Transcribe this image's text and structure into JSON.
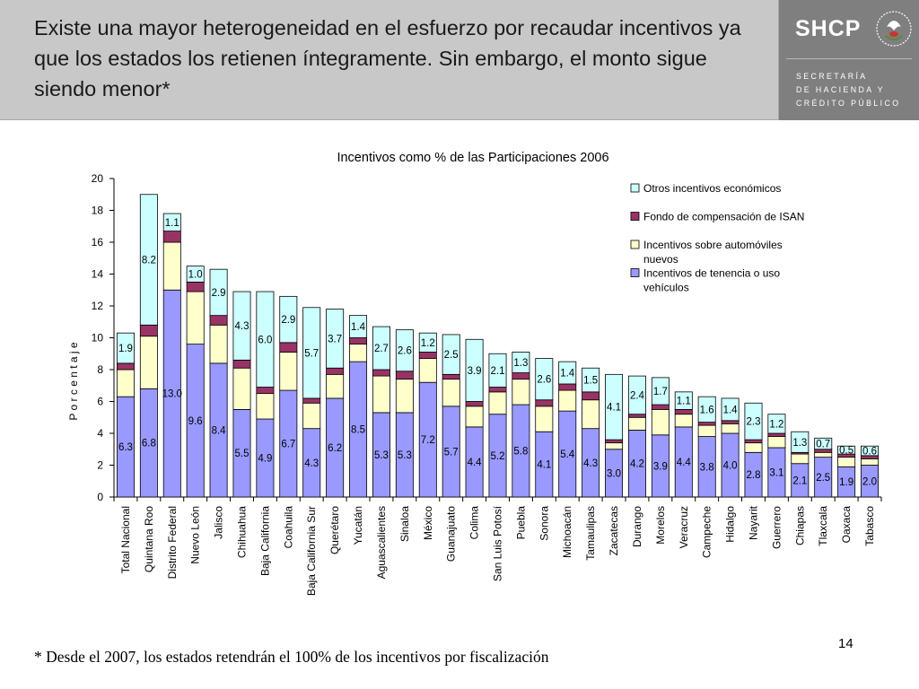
{
  "header": {
    "title": "Existe una mayor heterogeneidad en el esfuerzo por recaudar incentivos ya que los estados los retienen íntegramente.  Sin embargo, el monto sigue siendo menor*",
    "logo_text": "SHCP",
    "agency_lines": [
      "SECRETARÍA",
      "DE HACIENDA Y",
      "CRÉDITO PÚBLICO"
    ]
  },
  "footnote": "* Desde el 2007, los estados retendrán el 100% de los incentivos por fiscalización",
  "page_number": "14",
  "chart_data": {
    "type": "bar",
    "stacked": true,
    "title": "Incentivos como % de las Participaciones 2006",
    "ylabel": "P o r c e n t a j e",
    "xlabel": "",
    "ylim": [
      0,
      20
    ],
    "yticks": [
      0,
      2,
      4,
      6,
      8,
      10,
      12,
      14,
      16,
      18,
      20
    ],
    "legend_position": "top-right",
    "categories": [
      "Total Nacional",
      "Quintana Roo",
      "Distrito Federal",
      "Nuevo León",
      "Jalisco",
      "Chihuahua",
      "Baja California",
      "Coahuila",
      "Baja California Sur",
      "Querétaro",
      "Yucatán",
      "Aguascalientes",
      "Sinaloa",
      "México",
      "Guanajuato",
      "Colima",
      "San Luis Potosí",
      "Puebla",
      "Sonora",
      "Michoacán",
      "Tamaulipas",
      "Zacatecas",
      "Durango",
      "Morelos",
      "Veracruz",
      "Campeche",
      "Hidalgo",
      "Nayarit",
      "Guerrero",
      "Chiapas",
      "Tlaxcala",
      "Oaxaca",
      "Tabasco"
    ],
    "series": [
      {
        "name": "Incentivos de tenencia o uso vehículos",
        "color": "#9999ff",
        "values": [
          6.3,
          6.8,
          13.0,
          9.6,
          8.4,
          5.5,
          4.9,
          6.7,
          4.3,
          6.2,
          8.5,
          5.3,
          5.3,
          7.2,
          5.7,
          4.4,
          5.2,
          5.8,
          4.1,
          5.4,
          4.3,
          3.0,
          4.2,
          3.9,
          4.4,
          3.8,
          4.0,
          2.8,
          3.1,
          2.1,
          2.5,
          1.9,
          2.0
        ],
        "labels": [
          "6.3",
          "6.8",
          "13.0",
          "9.6",
          "8.4",
          "5.5",
          "4.9",
          "6.7",
          "4.3",
          "6.2",
          "8.5",
          "5.3",
          "5.3",
          "7.2",
          "5.7",
          "4.4",
          "5.2",
          "5.8",
          "4.1",
          "5.4",
          "4.3",
          "3.0",
          "4.2",
          "3.9",
          "4.4",
          "3.8",
          "4.0",
          "2.8",
          "3.1",
          "2.1",
          "2.5",
          "1.9",
          "2.0"
        ]
      },
      {
        "name": "Incentivos sobre automóviles nuevos",
        "color": "#ffffcc",
        "values": [
          1.7,
          3.3,
          3.0,
          3.3,
          2.4,
          2.6,
          1.6,
          2.4,
          1.6,
          1.5,
          1.1,
          2.3,
          2.1,
          1.5,
          1.7,
          1.3,
          1.4,
          1.6,
          1.6,
          1.3,
          1.8,
          0.4,
          0.8,
          1.6,
          0.8,
          0.7,
          0.6,
          0.6,
          0.7,
          0.6,
          0.3,
          0.6,
          0.4
        ],
        "labels": []
      },
      {
        "name": "Fondo de compensación de ISAN",
        "color": "#993366",
        "values": [
          0.4,
          0.7,
          0.7,
          0.6,
          0.6,
          0.5,
          0.4,
          0.6,
          0.3,
          0.4,
          0.4,
          0.4,
          0.5,
          0.4,
          0.3,
          0.3,
          0.3,
          0.4,
          0.4,
          0.4,
          0.5,
          0.2,
          0.2,
          0.3,
          0.3,
          0.2,
          0.2,
          0.2,
          0.2,
          0.1,
          0.2,
          0.2,
          0.2
        ],
        "labels": []
      },
      {
        "name": "Otros incentivos económicos",
        "color": "#ccffff",
        "values": [
          1.9,
          8.2,
          1.1,
          1.0,
          2.9,
          4.3,
          6.0,
          2.9,
          5.7,
          3.7,
          1.4,
          2.7,
          2.6,
          1.2,
          2.5,
          3.9,
          2.1,
          1.3,
          2.6,
          1.4,
          1.5,
          4.1,
          2.4,
          1.7,
          1.1,
          1.6,
          1.4,
          2.3,
          1.2,
          1.3,
          0.7,
          0.5,
          0.6
        ],
        "labels": [
          "1.9",
          "8.2",
          "1.1",
          "1.0",
          "2.9",
          "4.3",
          "6.0",
          "2.9",
          "5.7",
          "3.7",
          "1.4",
          "2.7",
          "2.6",
          "1.2",
          "2.5",
          "3.9",
          "2.1",
          "1.3",
          "2.6",
          "1.4",
          "1.5",
          "4.1",
          "2.4",
          "1.7",
          "1.1",
          "1.6",
          "1.4",
          "2.3",
          "1.2",
          "1.3",
          "0.7",
          "0.5",
          "0.6"
        ]
      }
    ],
    "legend_order": [
      {
        "name": "Otros incentivos económicos",
        "color": "#ccffff"
      },
      {
        "name": "Fondo de compensación de ISAN",
        "color": "#993366"
      },
      {
        "name": "Incentivos sobre automóviles nuevos",
        "color": "#ffffcc"
      },
      {
        "name": "Incentivos de tenencia o uso vehículos",
        "color": "#9999ff"
      }
    ]
  }
}
